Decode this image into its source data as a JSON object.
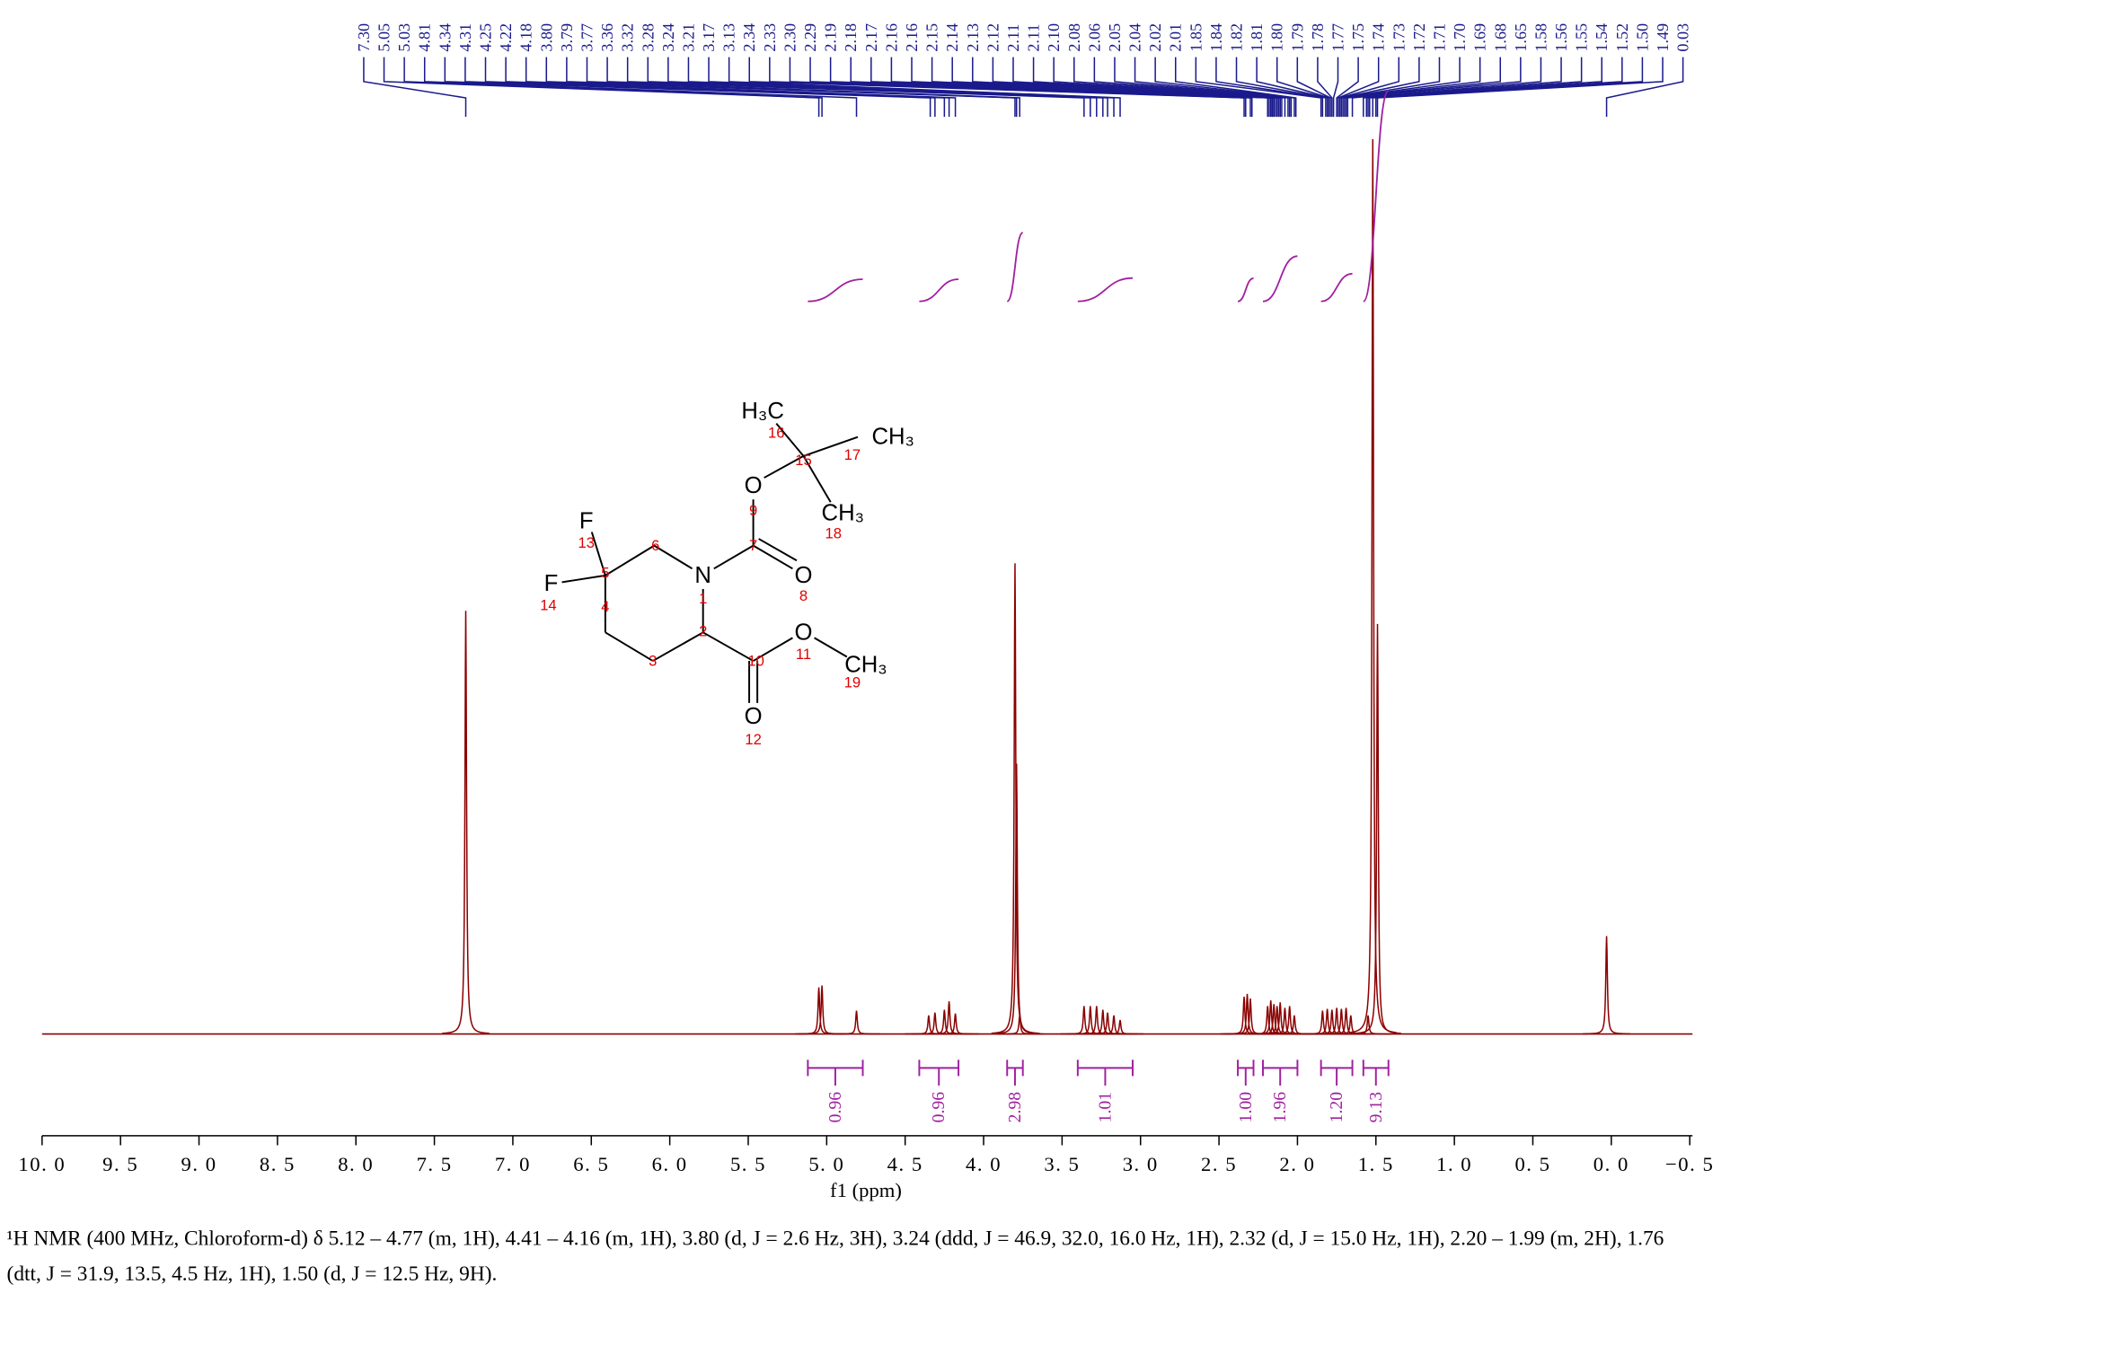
{
  "chart_data": {
    "type": "nmr",
    "x_label": "f1 (ppm)",
    "xlim": [
      10.0,
      -0.5
    ],
    "xticks": [
      {
        "value": 10.0,
        "label": "10. 0"
      },
      {
        "value": 9.5,
        "label": "9. 5"
      },
      {
        "value": 9.0,
        "label": "9. 0"
      },
      {
        "value": 8.5,
        "label": "8. 5"
      },
      {
        "value": 8.0,
        "label": "8. 0"
      },
      {
        "value": 7.5,
        "label": "7. 5"
      },
      {
        "value": 7.0,
        "label": "7. 0"
      },
      {
        "value": 6.5,
        "label": "6. 5"
      },
      {
        "value": 6.0,
        "label": "6. 0"
      },
      {
        "value": 5.5,
        "label": "5. 5"
      },
      {
        "value": 5.0,
        "label": "5. 0"
      },
      {
        "value": 4.5,
        "label": "4. 5"
      },
      {
        "value": 4.0,
        "label": "4. 0"
      },
      {
        "value": 3.5,
        "label": "3. 5"
      },
      {
        "value": 3.0,
        "label": "3. 0"
      },
      {
        "value": 2.5,
        "label": "2. 5"
      },
      {
        "value": 2.0,
        "label": "2. 0"
      },
      {
        "value": 1.5,
        "label": "1. 5"
      },
      {
        "value": 1.0,
        "label": "1. 0"
      },
      {
        "value": 0.5,
        "label": "0. 5"
      },
      {
        "value": 0.0,
        "label": "0. 0"
      },
      {
        "value": -0.5,
        "label": "−0. 5"
      }
    ],
    "ylim": [
      0,
      100
    ],
    "color": "#8b0000",
    "peaks": {
      "x": [
        7.3,
        5.05,
        5.03,
        4.81,
        4.35,
        4.31,
        4.25,
        4.22,
        4.18,
        3.8,
        3.79,
        3.77,
        3.36,
        3.32,
        3.28,
        3.24,
        3.21,
        3.17,
        3.13,
        2.34,
        2.32,
        2.3,
        2.19,
        2.17,
        2.15,
        2.13,
        2.11,
        2.08,
        2.05,
        2.02,
        1.84,
        1.81,
        1.78,
        1.75,
        1.72,
        1.69,
        1.66,
        1.55,
        1.52,
        1.49,
        0.03
      ],
      "values": [
        45.4,
        5.0,
        5.2,
        2.5,
        2.0,
        2.3,
        2.6,
        3.5,
        2.2,
        50.5,
        29,
        2.0,
        3.0,
        3.0,
        3.0,
        2.6,
        2.3,
        2.0,
        1.5,
        4.0,
        4.3,
        3.8,
        3.0,
        3.6,
        3.2,
        3.0,
        3.4,
        2.8,
        3.0,
        2.0,
        2.5,
        2.7,
        2.6,
        2.8,
        2.7,
        2.8,
        2.0,
        2.0,
        96,
        44,
        10.5
      ]
    },
    "peak_label_color": "#1a1a8c",
    "peak_labels": [
      {
        "value": 7.3,
        "label": "7.30"
      },
      {
        "value": 5.05,
        "label": "5.05"
      },
      {
        "value": 5.03,
        "label": "5.03"
      },
      {
        "value": 4.81,
        "label": "4.81"
      },
      {
        "value": 4.34,
        "label": "4.34"
      },
      {
        "value": 4.31,
        "label": "4.31"
      },
      {
        "value": 4.25,
        "label": "4.25"
      },
      {
        "value": 4.22,
        "label": "4.22"
      },
      {
        "value": 4.18,
        "label": "4.18"
      },
      {
        "value": 3.8,
        "label": "3.80"
      },
      {
        "value": 3.79,
        "label": "3.79"
      },
      {
        "value": 3.77,
        "label": "3.77"
      },
      {
        "value": 3.36,
        "label": "3.36"
      },
      {
        "value": 3.32,
        "label": "3.32"
      },
      {
        "value": 3.28,
        "label": "3.28"
      },
      {
        "value": 3.24,
        "label": "3.24"
      },
      {
        "value": 3.21,
        "label": "3.21"
      },
      {
        "value": 3.17,
        "label": "3.17"
      },
      {
        "value": 3.13,
        "label": "3.13"
      },
      {
        "value": 2.34,
        "label": "2.34"
      },
      {
        "value": 2.33,
        "label": "2.33"
      },
      {
        "value": 2.3,
        "label": "2.30"
      },
      {
        "value": 2.29,
        "label": "2.29"
      },
      {
        "value": 2.19,
        "label": "2.19"
      },
      {
        "value": 2.18,
        "label": "2.18"
      },
      {
        "value": 2.17,
        "label": "2.17"
      },
      {
        "value": 2.16,
        "label": "2.16"
      },
      {
        "value": 2.16,
        "label": "2.16"
      },
      {
        "value": 2.15,
        "label": "2.15"
      },
      {
        "value": 2.14,
        "label": "2.14"
      },
      {
        "value": 2.13,
        "label": "2.13"
      },
      {
        "value": 2.12,
        "label": "2.12"
      },
      {
        "value": 2.11,
        "label": "2.11"
      },
      {
        "value": 2.11,
        "label": "2.11"
      },
      {
        "value": 2.1,
        "label": "2.10"
      },
      {
        "value": 2.08,
        "label": "2.08"
      },
      {
        "value": 2.06,
        "label": "2.06"
      },
      {
        "value": 2.05,
        "label": "2.05"
      },
      {
        "value": 2.04,
        "label": "2.04"
      },
      {
        "value": 2.02,
        "label": "2.02"
      },
      {
        "value": 2.01,
        "label": "2.01"
      },
      {
        "value": 1.85,
        "label": "1.85"
      },
      {
        "value": 1.84,
        "label": "1.84"
      },
      {
        "value": 1.82,
        "label": "1.82"
      },
      {
        "value": 1.81,
        "label": "1.81"
      },
      {
        "value": 1.8,
        "label": "1.80"
      },
      {
        "value": 1.79,
        "label": "1.79"
      },
      {
        "value": 1.78,
        "label": "1.78"
      },
      {
        "value": 1.77,
        "label": "1.77"
      },
      {
        "value": 1.75,
        "label": "1.75"
      },
      {
        "value": 1.74,
        "label": "1.74"
      },
      {
        "value": 1.73,
        "label": "1.73"
      },
      {
        "value": 1.72,
        "label": "1.72"
      },
      {
        "value": 1.71,
        "label": "1.71"
      },
      {
        "value": 1.7,
        "label": "1.70"
      },
      {
        "value": 1.69,
        "label": "1.69"
      },
      {
        "value": 1.68,
        "label": "1.68"
      },
      {
        "value": 1.65,
        "label": "1.65"
      },
      {
        "value": 1.58,
        "label": "1.58"
      },
      {
        "value": 1.56,
        "label": "1.56"
      },
      {
        "value": 1.55,
        "label": "1.55"
      },
      {
        "value": 1.54,
        "label": "1.54"
      },
      {
        "value": 1.52,
        "label": "1.52"
      },
      {
        "value": 1.5,
        "label": "1.50"
      },
      {
        "value": 1.49,
        "label": "1.49"
      },
      {
        "value": 0.03,
        "label": "0.03"
      }
    ],
    "integral_color": "#a020a0",
    "integrals": {
      "ranges": [
        [
          5.12,
          4.77
        ],
        [
          4.41,
          4.16
        ],
        [
          3.85,
          3.75
        ],
        [
          3.4,
          3.05
        ],
        [
          2.38,
          2.28
        ],
        [
          2.22,
          2.0
        ],
        [
          1.85,
          1.65
        ],
        [
          1.58,
          1.42
        ]
      ],
      "values": [
        0.96,
        0.96,
        2.98,
        1.01,
        1.0,
        1.96,
        1.2,
        9.13
      ],
      "value_labels": [
        "0.96",
        "0.96",
        "2.98",
        "1.01",
        "1.00",
        "1.96",
        "1.20",
        "9.13"
      ]
    }
  },
  "molecule": {
    "atoms": [
      "H₃C",
      "CH₃",
      "O",
      "CH₃",
      "F",
      "F",
      "N",
      "O",
      "O",
      "CH₃",
      "O"
    ],
    "numbers": [
      1,
      2,
      3,
      4,
      5,
      6,
      7,
      8,
      9,
      10,
      11,
      12,
      13,
      14,
      15,
      16,
      17,
      18,
      19
    ]
  },
  "caption": [
    "¹H NMR (400 MHz, Chloroform-d) δ 5.12 – 4.77 (m, 1H), 4.41 – 4.16 (m, 1H), 3.80 (d, J = 2.6 Hz, 3H), 3.24 (ddd, J = 46.9, 32.0, 16.0 Hz, 1H), 2.32 (d, J = 15.0 Hz, 1H), 2.20 – 1.99 (m, 2H), 1.76",
    "(dtt, J = 31.9, 13.5, 4.5 Hz, 1H), 1.50 (d, J = 12.5 Hz, 9H)."
  ]
}
